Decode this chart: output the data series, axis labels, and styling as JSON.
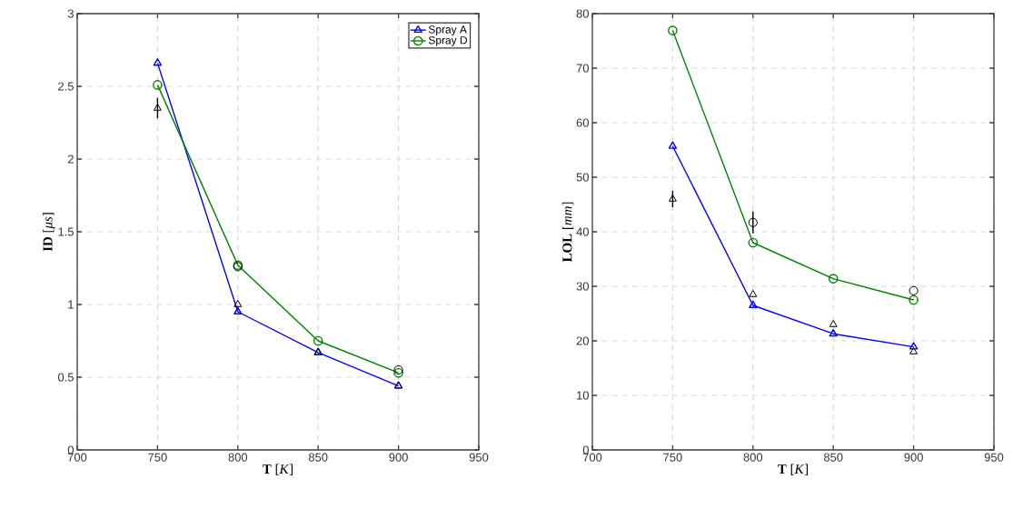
{
  "chart_data": [
    {
      "type": "line",
      "xlabel": "**T** [*K*]",
      "ylabel": "**ID** [*μs*]",
      "x": [
        750,
        800,
        850,
        900
      ],
      "xlim": [
        700,
        950
      ],
      "xticks": [
        700,
        750,
        800,
        850,
        900,
        950
      ],
      "ylim": [
        0,
        3
      ],
      "yticks": [
        0,
        0.5,
        1,
        1.5,
        2,
        2.5,
        3
      ],
      "grid": true,
      "legend": "top right",
      "series": [
        {
          "name": "Spray A",
          "color": "#0000ff",
          "marker": "triangle",
          "values": [
            2.66,
            0.95,
            0.67,
            0.44
          ]
        },
        {
          "name": "Spray D",
          "color": "#008000",
          "marker": "circle",
          "values": [
            2.51,
            1.27,
            0.75,
            0.53
          ]
        },
        {
          "type": "scatter",
          "color": "#000000",
          "marker": "triangle",
          "values": [
            2.35,
            1.0,
            0.67,
            0.44
          ],
          "errors": [
            0.07,
            null,
            null,
            null
          ]
        },
        {
          "type": "scatter",
          "color": "#000000",
          "marker": "circle",
          "values": [
            null,
            1.26,
            null,
            0.55
          ]
        }
      ]
    },
    {
      "type": "line",
      "xlabel": "**T** [*K*]",
      "ylabel": "**LOL** [*mm*]",
      "x": [
        750,
        800,
        850,
        900
      ],
      "xlim": [
        700,
        950
      ],
      "xticks": [
        700,
        750,
        800,
        850,
        900,
        950
      ],
      "ylim": [
        0,
        80
      ],
      "yticks": [
        0,
        10,
        20,
        30,
        40,
        50,
        60,
        70,
        80
      ],
      "grid": true,
      "series": [
        {
          "color": "#0000ff",
          "marker": "triangle",
          "values": [
            55.7,
            26.5,
            21.3,
            18.9
          ]
        },
        {
          "color": "#008000",
          "marker": "circle",
          "values": [
            76.9,
            38.0,
            31.4,
            27.5
          ]
        },
        {
          "type": "scatter",
          "color": "#000000",
          "marker": "triangle",
          "values": [
            46.0,
            28.5,
            23.0,
            18.0
          ],
          "errors": [
            1.5,
            null,
            null,
            null
          ]
        },
        {
          "type": "scatter",
          "color": "#000000",
          "marker": "circle",
          "values": [
            null,
            41.7,
            null,
            29.2
          ],
          "errors": [
            null,
            2.0,
            null,
            null
          ]
        }
      ]
    }
  ]
}
